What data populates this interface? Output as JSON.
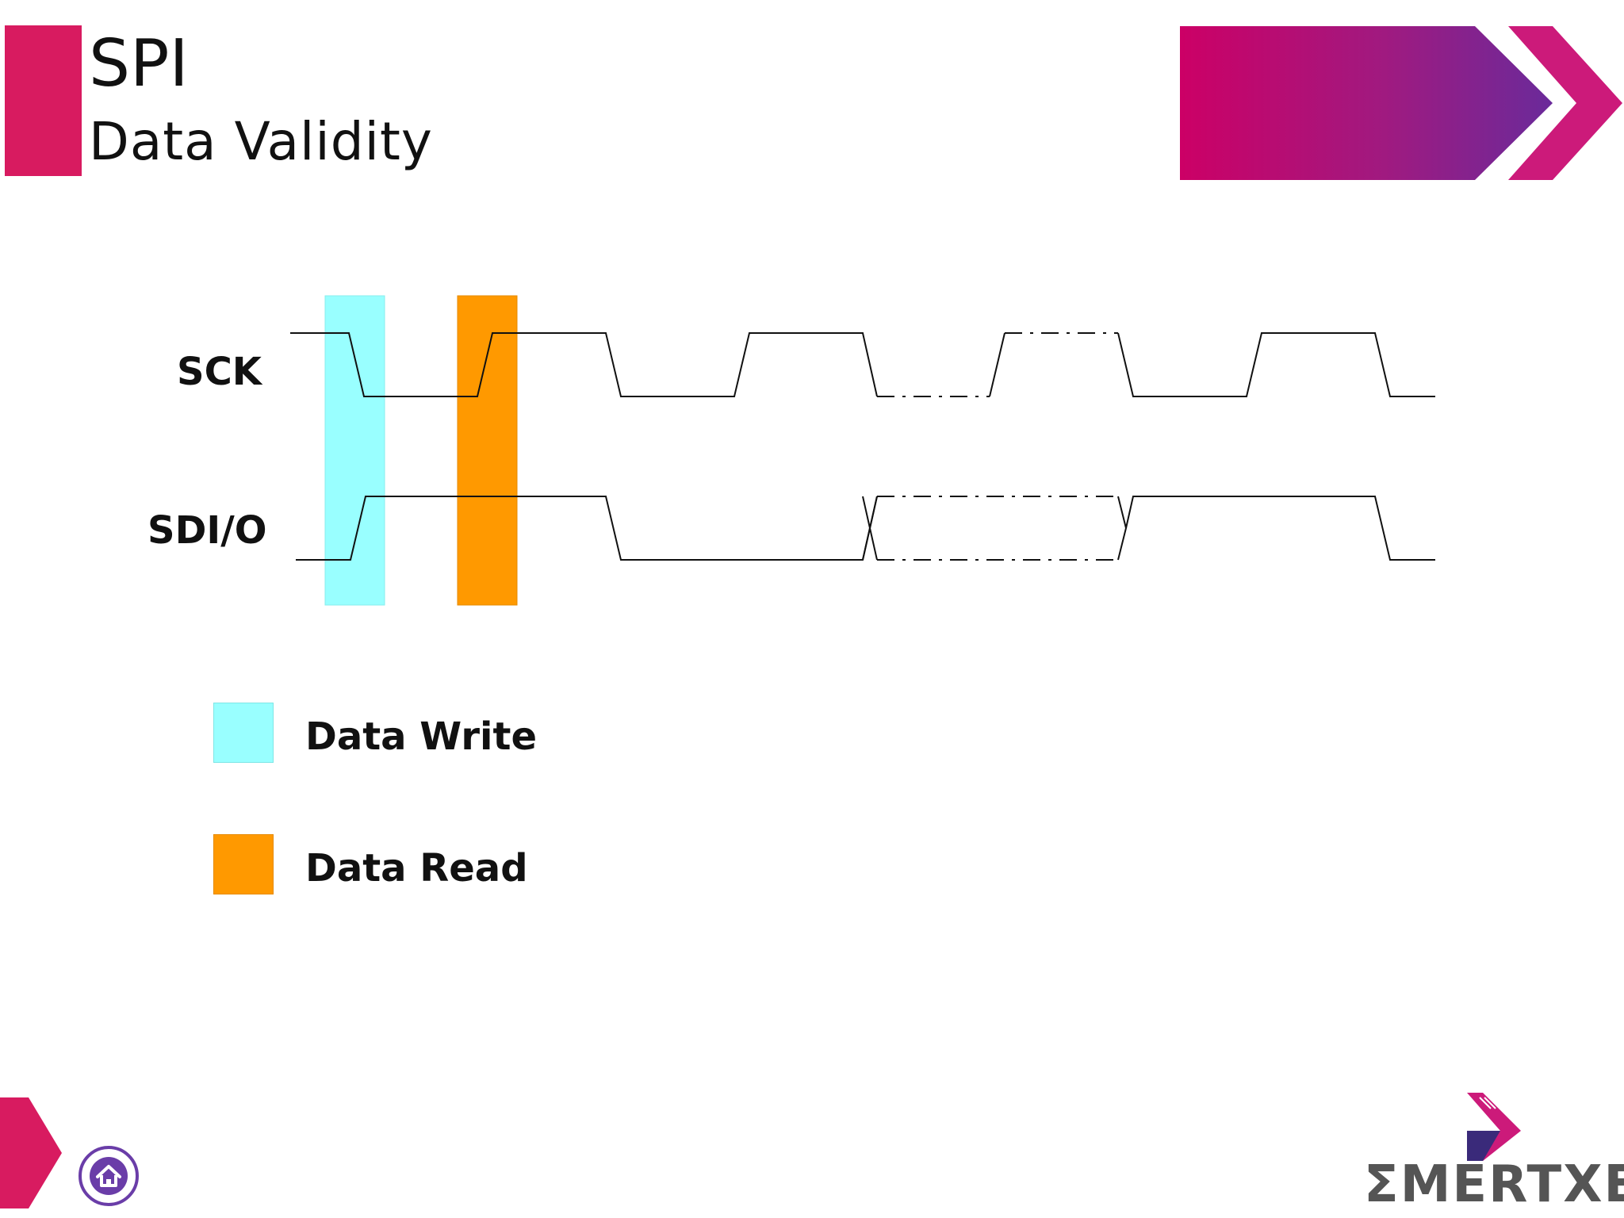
{
  "slide": {
    "title": "SPI",
    "subtitle": "Data Validity"
  },
  "signals": {
    "sck_label": "SCK",
    "sdio_label": "SDI/O"
  },
  "legend": {
    "write_label": "Data Write",
    "write_color": "#99ffff",
    "read_label": "Data Read",
    "read_color": "#ff9900"
  },
  "branding": {
    "logo_text": "ΣMERTXE",
    "accent_color": "#d81b60",
    "secondary_color": "#6a3da8",
    "logo_icon": "chevron-logo-icon"
  },
  "navigation": {
    "next_icon": "next-arrow-icon",
    "home_icon": "home-icon"
  }
}
